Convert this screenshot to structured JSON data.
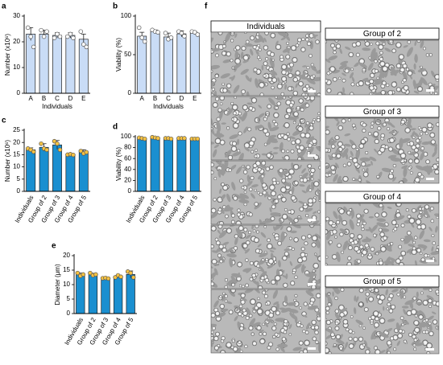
{
  "chart_data": [
    {
      "type": "bar",
      "label": "a",
      "ylabel": "Number (x10⁶)",
      "xlabel": "Individuals",
      "categories": [
        "A",
        "B",
        "C",
        "D",
        "E"
      ],
      "values": [
        23,
        23,
        22.5,
        22.5,
        21
      ],
      "errors": [
        2.5,
        1.5,
        1,
        1,
        2
      ],
      "points": [
        [
          25.5,
          22,
          18
        ],
        [
          24.5,
          22,
          24
        ],
        [
          21.5,
          23,
          22
        ],
        [
          22,
          23,
          21.5
        ],
        [
          24,
          19,
          18
        ]
      ],
      "color": "#c9dcf6",
      "point_color": "#ffffff",
      "ylim": [
        0,
        30
      ],
      "yticks": [
        0,
        10,
        20,
        30
      ]
    },
    {
      "type": "bar",
      "label": "b",
      "ylabel": "Viability (%)",
      "xlabel": "Individuals",
      "categories": [
        "A",
        "B",
        "C",
        "D",
        "E"
      ],
      "values": [
        74,
        80,
        73,
        77,
        78
      ],
      "errors": [
        5,
        2,
        5,
        4,
        2
      ],
      "points": [
        [
          85,
          72,
          67
        ],
        [
          82,
          80,
          79
        ],
        [
          78,
          70,
          72
        ],
        [
          80,
          78,
          74
        ],
        [
          80,
          79,
          76
        ]
      ],
      "color": "#c9dcf6",
      "point_color": "#ffffff",
      "ylim": [
        0,
        100
      ],
      "yticks": [
        0,
        50,
        100
      ]
    },
    {
      "type": "bar",
      "label": "c",
      "ylabel": "Number (x10⁶)",
      "categories": [
        "Individuals",
        "Group of 2",
        "Group of 3",
        "Group of 4",
        "Group of 5"
      ],
      "values": [
        17,
        18,
        19,
        15,
        16
      ],
      "errors": [
        0.8,
        1.5,
        1.8,
        0.2,
        1
      ],
      "points": [
        [
          17.5,
          17,
          16.2
        ],
        [
          19.5,
          17.5,
          17
        ],
        [
          20.5,
          19.5,
          17
        ],
        [
          15,
          15.2,
          14.9
        ],
        [
          16.5,
          15.5,
          16
        ]
      ],
      "color": "#1a8fd0",
      "point_color": "#f5c242",
      "ylim": [
        0,
        25
      ],
      "yticks": [
        0,
        5,
        10,
        15,
        20,
        25
      ]
    },
    {
      "type": "bar",
      "label": "d",
      "ylabel": "Viability (%)",
      "categories": [
        "Individuals",
        "Group of 2",
        "Group of 3",
        "Group of 4",
        "Group of 5"
      ],
      "values": [
        97,
        98,
        97,
        97,
        96
      ],
      "errors": [
        1,
        1,
        1,
        1,
        1
      ],
      "points": [
        [
          98,
          97,
          96
        ],
        [
          99,
          98,
          97
        ],
        [
          97,
          97,
          96
        ],
        [
          97,
          97,
          97
        ],
        [
          96,
          96,
          96
        ]
      ],
      "color": "#1a8fd0",
      "point_color": "#f5c242",
      "ylim": [
        0,
        100
      ],
      "yticks": [
        0,
        20,
        40,
        60,
        80,
        100
      ]
    },
    {
      "type": "bar",
      "label": "e",
      "ylabel": "Diameter (μm)",
      "categories": [
        "Individuals",
        "Group of 2",
        "Group of 3",
        "Group of 4",
        "Group of 5"
      ],
      "values": [
        13.5,
        13.5,
        12.2,
        12.8,
        13.5
      ],
      "errors": [
        0.5,
        0.4,
        0.2,
        0.4,
        1.2
      ],
      "points": [
        [
          14,
          13,
          13.5
        ],
        [
          14,
          13.2,
          13.5
        ],
        [
          12.2,
          12.3,
          12.1
        ],
        [
          12.5,
          13.2,
          12.7
        ],
        [
          14.5,
          14,
          12.5
        ]
      ],
      "color": "#1a8fd0",
      "point_color": "#f5c242",
      "ylim": [
        0,
        20
      ],
      "yticks": [
        0,
        5,
        10,
        15,
        20
      ]
    }
  ],
  "micrographs": {
    "label": "f",
    "panels": [
      "Individuals",
      "Group of 2",
      "Group of 3",
      "Group of 4",
      "Group of 5"
    ]
  }
}
